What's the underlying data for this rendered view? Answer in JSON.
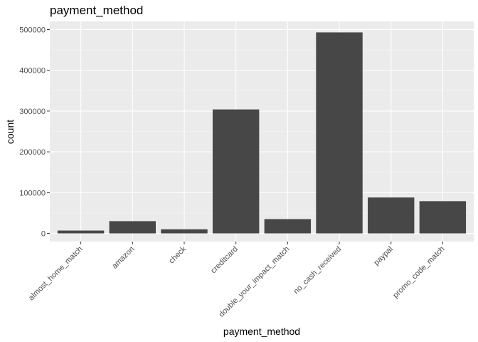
{
  "chart_data": {
    "type": "bar",
    "title": "payment_method",
    "xlabel": "payment_method",
    "ylabel": "count",
    "categories": [
      "almost_home_match",
      "amazon",
      "check",
      "creditcard",
      "double_your_impact_match",
      "no_cash_received",
      "paypal",
      "promo_code_match"
    ],
    "values": [
      7000,
      30000,
      10000,
      304000,
      35000,
      493000,
      88000,
      79000
    ],
    "ylim": [
      -20000,
      520000
    ],
    "yticks": [
      0,
      100000,
      200000,
      300000,
      400000,
      500000
    ],
    "ytick_labels": [
      "0",
      "100000",
      "200000",
      "300000",
      "400000",
      "500000"
    ],
    "grid": true,
    "legend": "none",
    "colors": {
      "bar": "#474747",
      "panel": "#ebebeb",
      "grid_major": "#ffffff",
      "grid_minor": "#f5f5f5"
    }
  }
}
